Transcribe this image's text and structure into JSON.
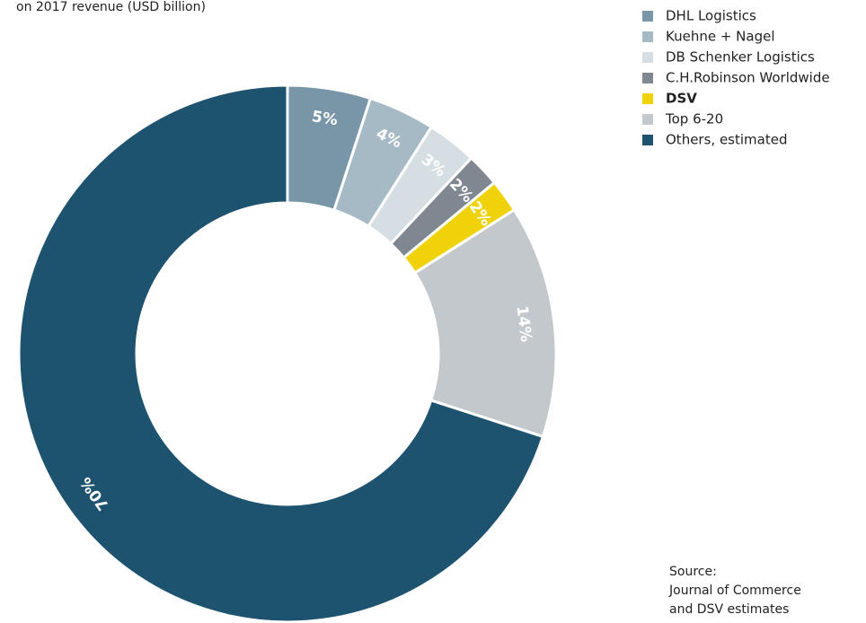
{
  "chart_data": {
    "type": "donut",
    "subtitle": "on 2017 revenue (USD billion)",
    "categories": [
      "DHL Logistics",
      "Kuehne + Nagel",
      "DB Schenker Logistics",
      "C.H.Robinson Worldwide",
      "DSV",
      "Top 6-20",
      "Others, estimated"
    ],
    "values": [
      5,
      4,
      3,
      2,
      2,
      14,
      70
    ],
    "value_labels": [
      "5%",
      "4%",
      "3%",
      "2%",
      "2%",
      "14%",
      "70%"
    ],
    "colors": [
      "#7896a8",
      "#a6bac6",
      "#d5dfe3",
      "#7f8790",
      "#f0d20a",
      "#c3c8cc",
      "#1d536e"
    ],
    "highlight": "DSV",
    "source": [
      "Source:",
      "Journal of Commerce",
      "and DSV estimates"
    ]
  }
}
